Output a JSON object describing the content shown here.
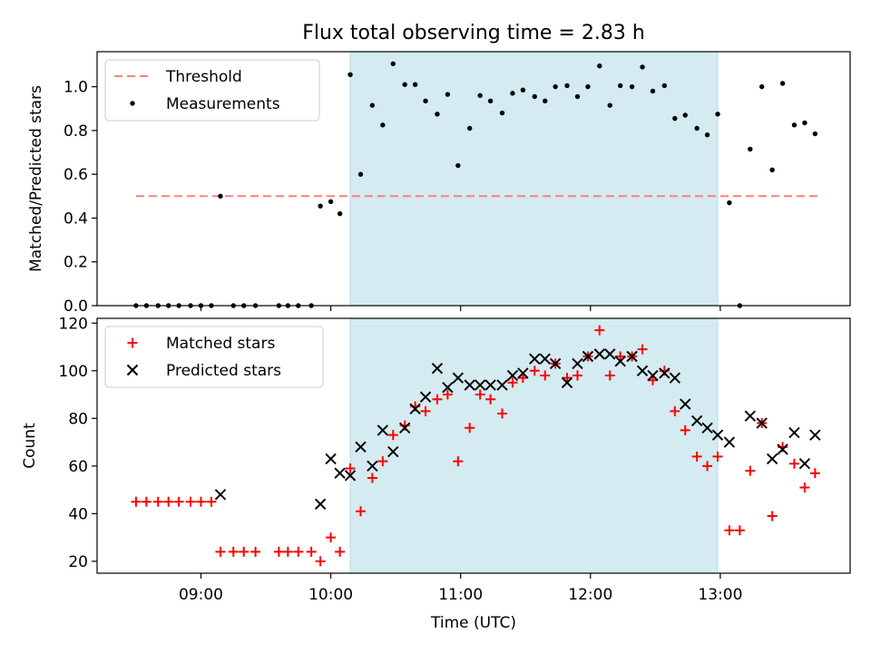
{
  "chart_data": [
    {
      "type": "scatter",
      "title": "Flux total observing time = 2.83 h",
      "ylabel": "Matched/Predicted stars",
      "xlabel": "",
      "x_unit": "hours UTC",
      "xlim": [
        8.2,
        14.0
      ],
      "ylim": [
        0,
        1.16
      ],
      "yticks": [
        0.0,
        0.2,
        0.4,
        0.6,
        0.8,
        1.0
      ],
      "shaded_span": [
        10.15,
        12.98
      ],
      "colors": {
        "shade": "#d4ebf1",
        "threshold": "#ff7f7f",
        "points": "#000000"
      },
      "legend_position": "upper-left",
      "series": [
        {
          "name": "Threshold",
          "style": "dashed-line",
          "x": [
            8.5,
            13.75
          ],
          "values": [
            0.5,
            0.5
          ]
        },
        {
          "name": "Measurements",
          "style": "dots",
          "points": [
            [
              8.5,
              0
            ],
            [
              8.58,
              0
            ],
            [
              8.67,
              0
            ],
            [
              8.75,
              0
            ],
            [
              8.83,
              0
            ],
            [
              8.92,
              0
            ],
            [
              9.0,
              0
            ],
            [
              9.08,
              0
            ],
            [
              9.15,
              0.5
            ],
            [
              9.25,
              0
            ],
            [
              9.33,
              0
            ],
            [
              9.42,
              0
            ],
            [
              9.6,
              0
            ],
            [
              9.67,
              0
            ],
            [
              9.75,
              0
            ],
            [
              9.85,
              0
            ],
            [
              9.92,
              0.455
            ],
            [
              10.0,
              0.475
            ],
            [
              10.07,
              0.42
            ],
            [
              10.15,
              1.055
            ],
            [
              10.23,
              0.6
            ],
            [
              10.32,
              0.915
            ],
            [
              10.4,
              0.825
            ],
            [
              10.48,
              1.105
            ],
            [
              10.57,
              1.01
            ],
            [
              10.65,
              1.01
            ],
            [
              10.73,
              0.935
            ],
            [
              10.82,
              0.875
            ],
            [
              10.9,
              0.965
            ],
            [
              10.98,
              0.64
            ],
            [
              11.07,
              0.81
            ],
            [
              11.15,
              0.96
            ],
            [
              11.23,
              0.935
            ],
            [
              11.32,
              0.88
            ],
            [
              11.4,
              0.97
            ],
            [
              11.48,
              0.985
            ],
            [
              11.57,
              0.955
            ],
            [
              11.65,
              0.935
            ],
            [
              11.73,
              1.0
            ],
            [
              11.82,
              1.005
            ],
            [
              11.9,
              0.955
            ],
            [
              11.98,
              1.0
            ],
            [
              12.07,
              1.095
            ],
            [
              12.15,
              0.915
            ],
            [
              12.23,
              1.005
            ],
            [
              12.32,
              1.0
            ],
            [
              12.4,
              1.09
            ],
            [
              12.48,
              0.98
            ],
            [
              12.57,
              1.005
            ],
            [
              12.65,
              0.855
            ],
            [
              12.73,
              0.87
            ],
            [
              12.82,
              0.81
            ],
            [
              12.9,
              0.78
            ],
            [
              12.98,
              0.875
            ],
            [
              13.07,
              0.47
            ],
            [
              13.15,
              0.0
            ],
            [
              13.23,
              0.715
            ],
            [
              13.32,
              1.0
            ],
            [
              13.4,
              0.62
            ],
            [
              13.48,
              1.015
            ],
            [
              13.57,
              0.825
            ],
            [
              13.65,
              0.835
            ],
            [
              13.73,
              0.785
            ]
          ]
        }
      ]
    },
    {
      "type": "scatter",
      "title": "",
      "xlabel": "Time (UTC)",
      "ylabel": "Count",
      "x_unit": "hours UTC",
      "xlim": [
        8.2,
        14.0
      ],
      "ylim": [
        15,
        122
      ],
      "yticks": [
        20,
        40,
        60,
        80,
        100,
        120
      ],
      "xticks": [
        9,
        10,
        11,
        12,
        13
      ],
      "xticklabels": [
        "09:00",
        "10:00",
        "11:00",
        "12:00",
        "13:00"
      ],
      "shaded_span": [
        10.15,
        12.98
      ],
      "colors": {
        "shade": "#d4ebf1",
        "matched": "#ff0000",
        "predicted": "#000000"
      },
      "legend_position": "upper-left",
      "series": [
        {
          "name": "Matched stars",
          "marker": "plus",
          "points": [
            [
              8.5,
              45
            ],
            [
              8.58,
              45
            ],
            [
              8.67,
              45
            ],
            [
              8.75,
              45
            ],
            [
              8.83,
              45
            ],
            [
              8.92,
              45
            ],
            [
              9.0,
              45
            ],
            [
              9.08,
              45
            ],
            [
              9.15,
              24
            ],
            [
              9.25,
              24
            ],
            [
              9.33,
              24
            ],
            [
              9.42,
              24
            ],
            [
              9.6,
              24
            ],
            [
              9.67,
              24
            ],
            [
              9.75,
              24
            ],
            [
              9.85,
              24
            ],
            [
              9.92,
              20
            ],
            [
              10.0,
              30
            ],
            [
              10.07,
              24
            ],
            [
              10.15,
              59
            ],
            [
              10.23,
              41
            ],
            [
              10.32,
              55
            ],
            [
              10.4,
              62
            ],
            [
              10.48,
              73
            ],
            [
              10.57,
              77
            ],
            [
              10.65,
              85
            ],
            [
              10.73,
              83
            ],
            [
              10.82,
              88
            ],
            [
              10.9,
              90
            ],
            [
              10.98,
              62
            ],
            [
              11.07,
              76
            ],
            [
              11.15,
              90
            ],
            [
              11.23,
              88
            ],
            [
              11.32,
              82
            ],
            [
              11.4,
              95
            ],
            [
              11.48,
              97
            ],
            [
              11.57,
              100
            ],
            [
              11.65,
              98
            ],
            [
              11.73,
              103
            ],
            [
              11.82,
              97
            ],
            [
              11.9,
              98
            ],
            [
              11.98,
              106
            ],
            [
              12.07,
              117
            ],
            [
              12.15,
              98
            ],
            [
              12.23,
              106
            ],
            [
              12.32,
              106
            ],
            [
              12.4,
              109
            ],
            [
              12.48,
              96
            ],
            [
              12.57,
              100
            ],
            [
              12.65,
              83
            ],
            [
              12.73,
              75
            ],
            [
              12.82,
              64
            ],
            [
              12.9,
              60
            ],
            [
              12.98,
              64
            ],
            [
              13.07,
              33
            ],
            [
              13.15,
              33
            ],
            [
              13.23,
              58
            ],
            [
              13.32,
              78
            ],
            [
              13.4,
              39
            ],
            [
              13.48,
              68
            ],
            [
              13.57,
              61
            ],
            [
              13.65,
              51
            ],
            [
              13.73,
              57
            ]
          ]
        },
        {
          "name": "Predicted stars",
          "marker": "x",
          "points": [
            [
              9.15,
              48
            ],
            [
              9.92,
              44
            ],
            [
              10.0,
              63
            ],
            [
              10.07,
              57
            ],
            [
              10.15,
              56
            ],
            [
              10.23,
              68
            ],
            [
              10.32,
              60
            ],
            [
              10.4,
              75
            ],
            [
              10.48,
              66
            ],
            [
              10.57,
              76
            ],
            [
              10.65,
              84
            ],
            [
              10.73,
              89
            ],
            [
              10.82,
              101
            ],
            [
              10.9,
              93
            ],
            [
              10.98,
              97
            ],
            [
              11.07,
              94
            ],
            [
              11.15,
              94
            ],
            [
              11.23,
              94
            ],
            [
              11.32,
              94
            ],
            [
              11.4,
              98
            ],
            [
              11.48,
              99
            ],
            [
              11.57,
              105
            ],
            [
              11.65,
              105
            ],
            [
              11.73,
              103
            ],
            [
              11.82,
              95
            ],
            [
              11.9,
              103
            ],
            [
              11.98,
              106
            ],
            [
              12.07,
              107
            ],
            [
              12.15,
              107
            ],
            [
              12.23,
              104
            ],
            [
              12.32,
              106
            ],
            [
              12.4,
              100
            ],
            [
              12.48,
              98
            ],
            [
              12.57,
              99
            ],
            [
              12.65,
              97
            ],
            [
              12.73,
              86
            ],
            [
              12.82,
              79
            ],
            [
              12.9,
              76
            ],
            [
              12.98,
              73
            ],
            [
              13.07,
              70
            ],
            [
              13.23,
              81
            ],
            [
              13.32,
              78
            ],
            [
              13.4,
              63
            ],
            [
              13.48,
              67
            ],
            [
              13.57,
              74
            ],
            [
              13.65,
              61
            ],
            [
              13.73,
              73
            ]
          ]
        }
      ]
    }
  ]
}
